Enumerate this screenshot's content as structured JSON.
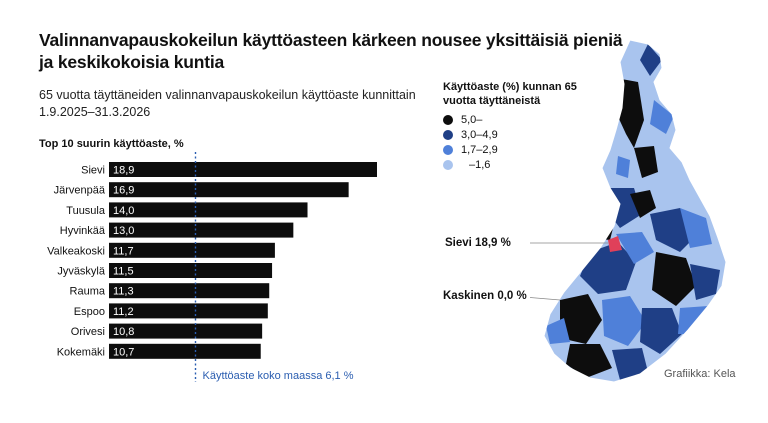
{
  "title": "Valinnanvapauskokeilun käyttöasteen kärkeen nousee yksittäisiä pieniä ja keskikokoisia kuntia",
  "subtitle": "65 vuotta täyttäneiden valinnanvapauskokeilun käyttöaste kunnittain 1.9.2025–31.3.2026",
  "top10_label": "Top 10 suurin käyttöaste, %",
  "average_label": "Käyttöaste koko maassa 6,1 %",
  "legend": {
    "title": "Käyttöaste (%) kunnan 65 vuotta täyttäneistä",
    "items": [
      {
        "label": "5,0–",
        "color": "#0d0d0d"
      },
      {
        "label": "3,0–4,9",
        "color": "#1f3f86"
      },
      {
        "label": "1,7–2,9",
        "color": "#4f80d9"
      },
      {
        "label": "–1,6",
        "color": "#a9c4ee"
      }
    ]
  },
  "map_labels": {
    "sievi": "Sievi 18,9 %",
    "kaskinen": "Kaskinen 0,0 %"
  },
  "credit": "Grafiikka: Kela",
  "colors": {
    "bar": "#0d0d0d",
    "average_line": "#2a5db0",
    "highlight": "#e0405a"
  },
  "chart_data": {
    "type": "bar",
    "orientation": "horizontal",
    "title": "Top 10 suurin käyttöaste, %",
    "categories": [
      "Sievi",
      "Järvenpää",
      "Tuusula",
      "Hyvinkää",
      "Valkeakoski",
      "Jyväskylä",
      "Rauma",
      "Espoo",
      "Orivesi",
      "Kokemäki"
    ],
    "values": [
      18.9,
      16.9,
      14.0,
      13.0,
      11.7,
      11.5,
      11.3,
      11.2,
      10.8,
      10.7
    ],
    "value_labels": [
      "18,9",
      "16,9",
      "14,0",
      "13,0",
      "11,7",
      "11,5",
      "11,3",
      "11,2",
      "10,8",
      "10,7"
    ],
    "reference_line": {
      "value": 6.1,
      "label": "Käyttöaste koko maassa 6,1 %"
    }
  }
}
